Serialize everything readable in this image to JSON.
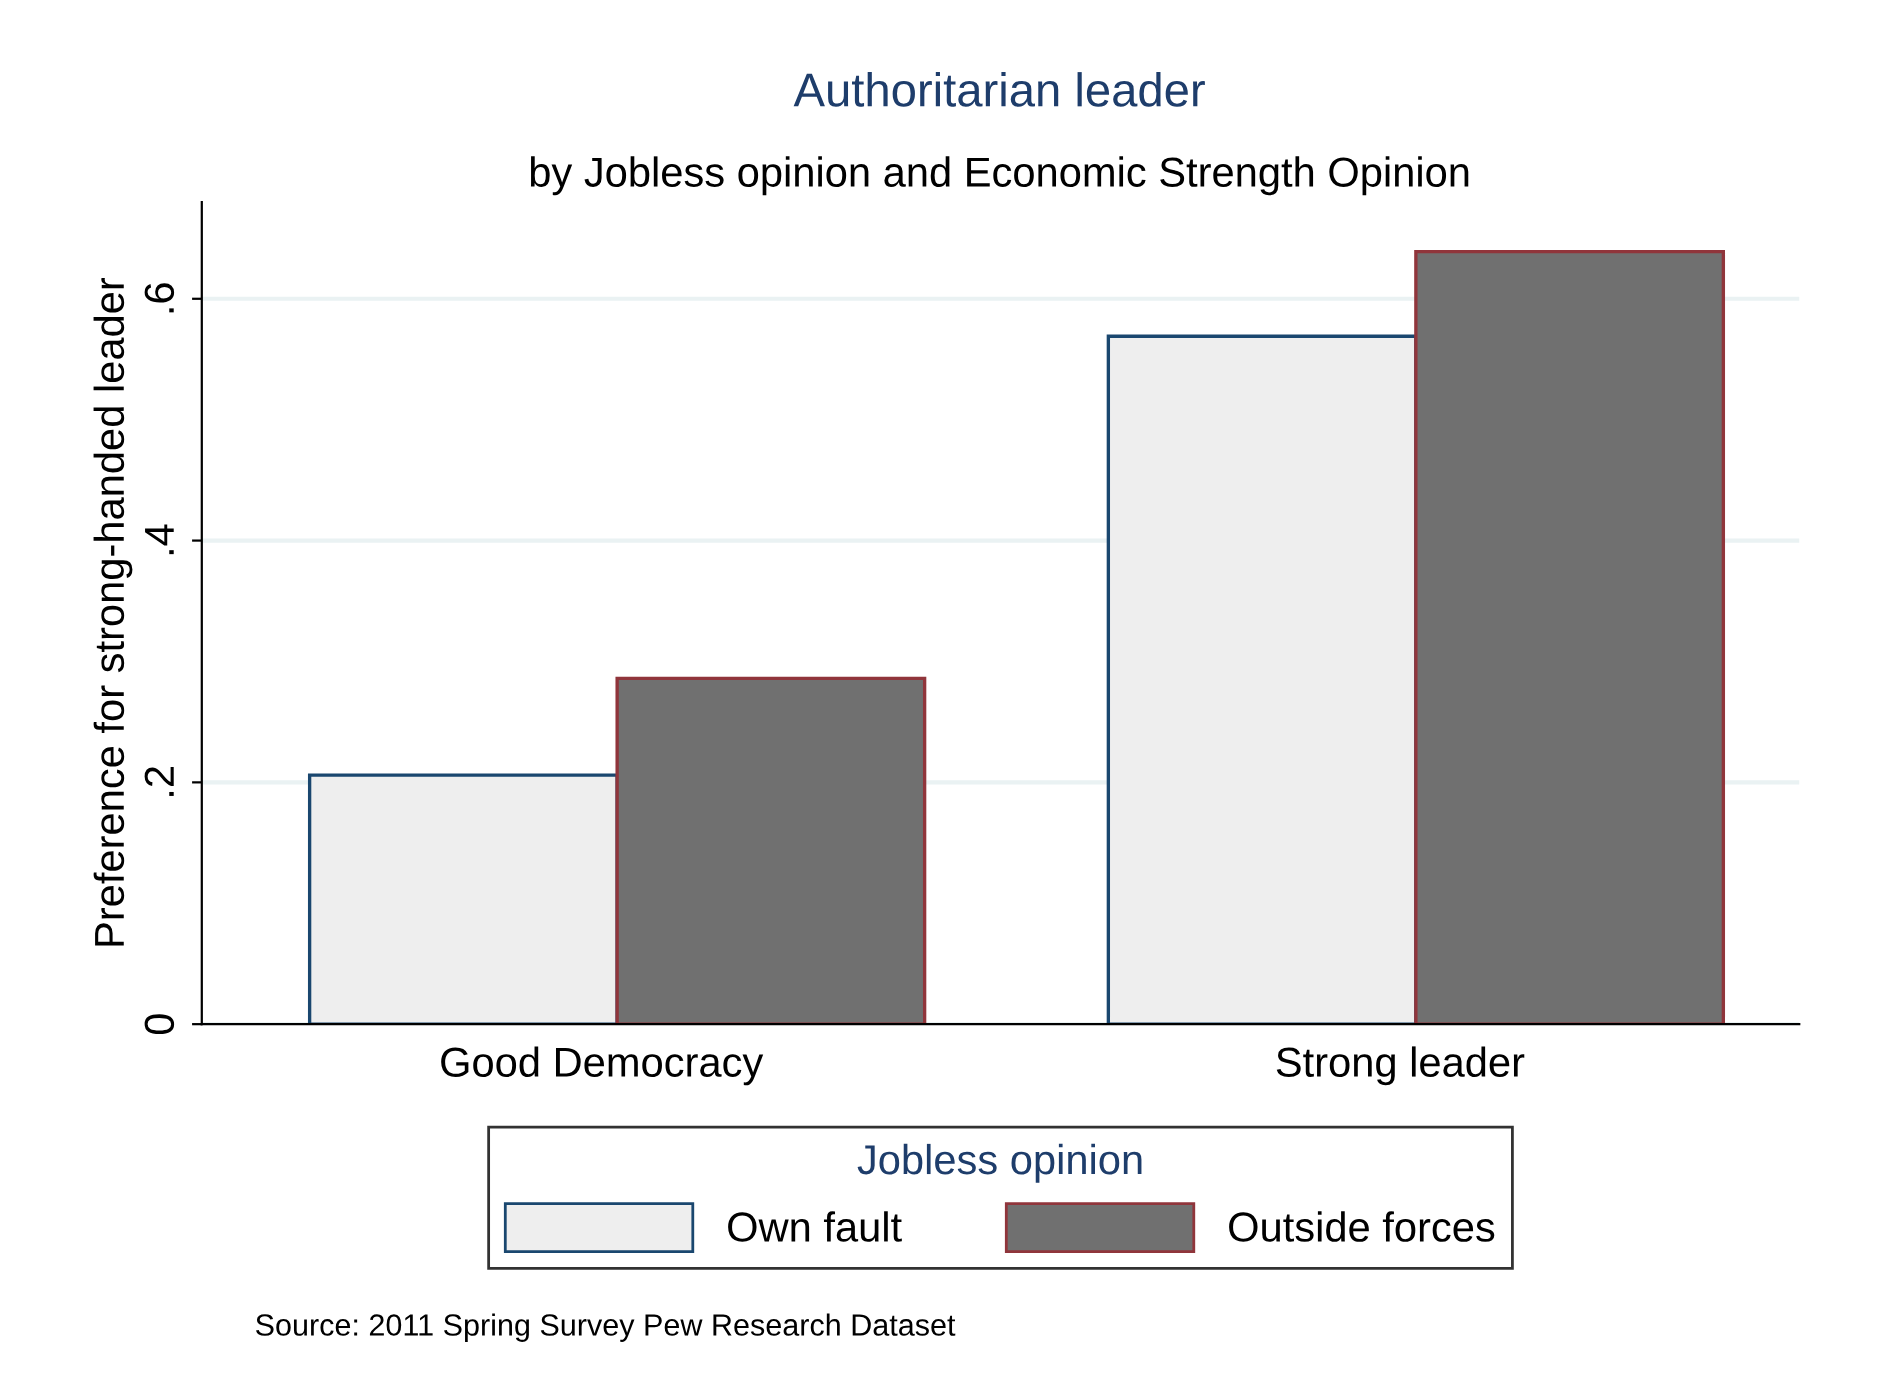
{
  "chart_data": {
    "type": "bar",
    "title": "Authoritarian leader",
    "subtitle": "by Jobless opinion and Economic Strength Opinion",
    "ylabel": "Preference for strong-handed leader",
    "legend_title": "Jobless opinion",
    "categories": [
      "Good Democracy",
      "Strong leader"
    ],
    "series": [
      {
        "name": "Own fault",
        "color": "#eeeeee",
        "values": [
          0.206,
          0.569
        ]
      },
      {
        "name": "Outside forces",
        "color": "#707070",
        "values": [
          0.286,
          0.639
        ]
      }
    ],
    "ylim": [
      0,
      0.68
    ],
    "yticks": [
      {
        "value": 0,
        "label": "0"
      },
      {
        "value": 0.2,
        "label": ".2"
      },
      {
        "value": 0.4,
        "label": ".4"
      },
      {
        "value": 0.6,
        "label": ".6"
      }
    ],
    "grid": "y",
    "legend": "bottom",
    "annotations": [
      "Source: 2011 Spring Survey Pew Research Dataset"
    ]
  }
}
